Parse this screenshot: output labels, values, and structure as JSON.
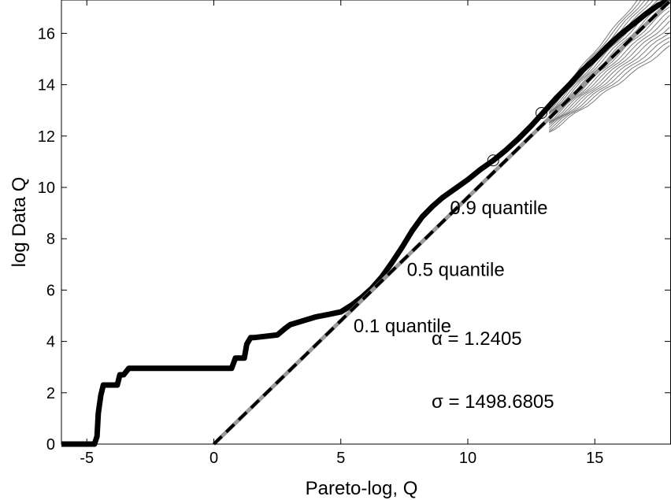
{
  "chart_data": {
    "type": "line",
    "xlabel": "Pareto-log, Q",
    "ylabel": "log Data Q",
    "xlim": [
      -6,
      18
    ],
    "ylim": [
      0,
      17.3
    ],
    "xticks": [
      "-5",
      "0",
      "5",
      "10",
      "15"
    ],
    "yticks": [
      "0",
      "2",
      "4",
      "6",
      "8",
      "10",
      "12",
      "14",
      "16"
    ],
    "grid": false,
    "annotations": [
      {
        "text": "0.9 quantile",
        "x": 9.3,
        "y": 9.2
      },
      {
        "text": "0.5 quantile",
        "x": 7.6,
        "y": 6.8
      },
      {
        "text": "0.1 quantile",
        "x": 5.5,
        "y": 4.6
      }
    ],
    "parameters": [
      {
        "text": "α = 1.2405"
      },
      {
        "text": "σ = 1498.6805"
      }
    ],
    "series": [
      {
        "style": "empirical",
        "x": [
          -6,
          -4.7,
          -4.6,
          -4.55,
          -4.45,
          -4.35,
          -3.8,
          -3.7,
          -3.55,
          -3.35,
          -3.3,
          0.7,
          0.85,
          1.2,
          1.3,
          1.45,
          1.6,
          2.5,
          2.8,
          3.0,
          3.5,
          4.0,
          4.5,
          5.0,
          5.4,
          5.8,
          6.2,
          6.6,
          7.0,
          7.4,
          7.8,
          8.2,
          8.6,
          9.0,
          9.5,
          10.0,
          10.5,
          11.0,
          11.5,
          12.0,
          12.5,
          13.0,
          13.5,
          14.0,
          14.5,
          15.0,
          15.5,
          16.0,
          16.5,
          17.0,
          17.5,
          18.0
        ],
        "y": [
          0,
          0,
          0.3,
          1.2,
          1.9,
          2.3,
          2.3,
          2.7,
          2.7,
          2.95,
          2.95,
          2.95,
          3.35,
          3.35,
          3.9,
          4.15,
          4.15,
          4.25,
          4.5,
          4.65,
          4.8,
          4.95,
          5.05,
          5.15,
          5.4,
          5.7,
          6.05,
          6.5,
          7.05,
          7.65,
          8.3,
          8.85,
          9.25,
          9.6,
          9.95,
          10.3,
          10.7,
          11.05,
          11.45,
          11.9,
          12.4,
          12.95,
          13.5,
          14.0,
          14.55,
          15.0,
          15.5,
          15.95,
          16.35,
          16.75,
          17.1,
          17.3
        ]
      },
      {
        "style": "fit-dashed",
        "x": [
          0,
          18
        ],
        "y": [
          0,
          17.3
        ]
      }
    ],
    "markers": [
      {
        "x": 11.0,
        "y": 11.05
      },
      {
        "x": 12.9,
        "y": 12.9
      }
    ]
  }
}
